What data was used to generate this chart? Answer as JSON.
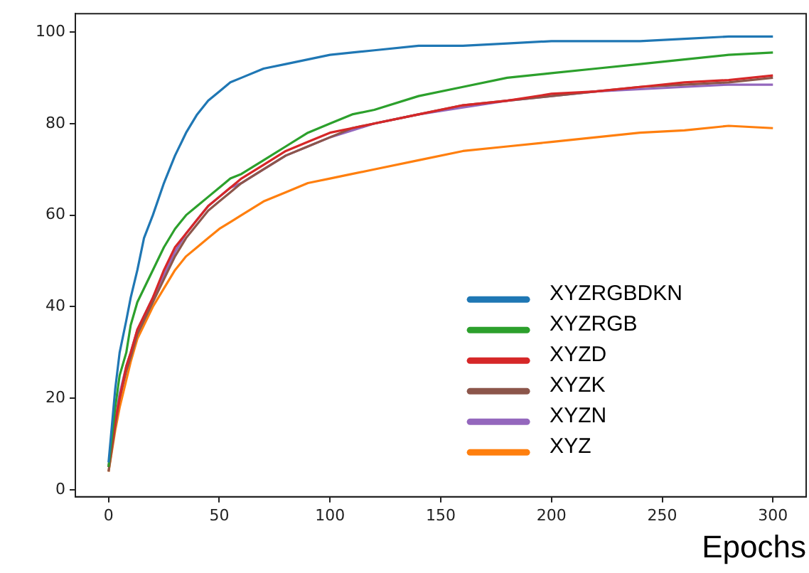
{
  "chart_data": {
    "type": "line",
    "xlabel": "Epochs",
    "xlim": [
      -15,
      315
    ],
    "ylim": [
      -1.5,
      104
    ],
    "xticks": [
      0,
      50,
      100,
      150,
      200,
      250,
      300
    ],
    "yticks": [
      0,
      20,
      40,
      60,
      80,
      100
    ],
    "grid": false,
    "legend": "right",
    "marker": "none",
    "line_style": "solid",
    "x": [
      0,
      3,
      5,
      8,
      10,
      13,
      16,
      20,
      25,
      30,
      35,
      40,
      45,
      50,
      55,
      60,
      70,
      80,
      90,
      100,
      110,
      120,
      140,
      160,
      180,
      200,
      220,
      240,
      260,
      280,
      300
    ],
    "series": [
      {
        "name": "XYZRGBDKN",
        "color": "#1f77b4",
        "values": [
          6,
          22,
          30,
          37,
          42,
          48,
          55,
          60,
          67,
          73,
          78,
          82,
          85,
          87,
          89,
          90,
          92,
          93,
          94,
          95,
          95.5,
          96,
          97,
          97,
          97.5,
          98,
          98,
          98,
          98.5,
          99,
          99
        ]
      },
      {
        "name": "XYZRGB",
        "color": "#2ca02c",
        "values": [
          5,
          18,
          25,
          30,
          36,
          41,
          44,
          48,
          53,
          57,
          60,
          62,
          64,
          66,
          68,
          69,
          72,
          75,
          78,
          80,
          82,
          83,
          86,
          88,
          90,
          91,
          92,
          93,
          94,
          95,
          95.5
        ]
      },
      {
        "name": "XYZD",
        "color": "#d62728",
        "values": [
          5,
          15,
          20,
          27,
          30,
          35,
          38,
          42,
          48,
          53,
          56,
          59,
          62,
          64,
          66,
          68,
          71,
          74,
          76,
          78,
          79,
          80,
          82,
          84,
          85,
          86.5,
          87,
          88,
          89,
          89.5,
          90.5
        ]
      },
      {
        "name": "XYZK",
        "color": "#8c564b",
        "values": [
          4,
          14,
          20,
          26,
          29,
          34,
          37,
          41,
          46,
          51,
          55,
          58,
          61,
          63,
          65,
          67,
          70,
          73,
          75,
          77,
          79,
          80,
          82,
          84,
          85,
          86,
          87,
          88,
          88.5,
          89,
          90
        ]
      },
      {
        "name": "XYZN",
        "color": "#9467bd",
        "values": [
          5,
          15,
          21,
          27,
          30,
          35,
          38,
          42,
          47,
          52,
          56,
          59,
          62,
          64,
          66,
          67,
          70,
          73,
          75,
          77,
          78.5,
          80,
          82,
          83.5,
          85,
          86,
          87,
          87.5,
          88,
          88.5,
          88.5
        ]
      },
      {
        "name": "XYZ",
        "color": "#ff7f0e",
        "values": [
          4,
          13,
          18,
          24,
          28,
          33,
          36,
          40,
          44,
          48,
          51,
          53,
          55,
          57,
          58.5,
          60,
          63,
          65,
          67,
          68,
          69,
          70,
          72,
          74,
          75,
          76,
          77,
          78,
          78.5,
          79.5,
          79
        ]
      }
    ]
  }
}
